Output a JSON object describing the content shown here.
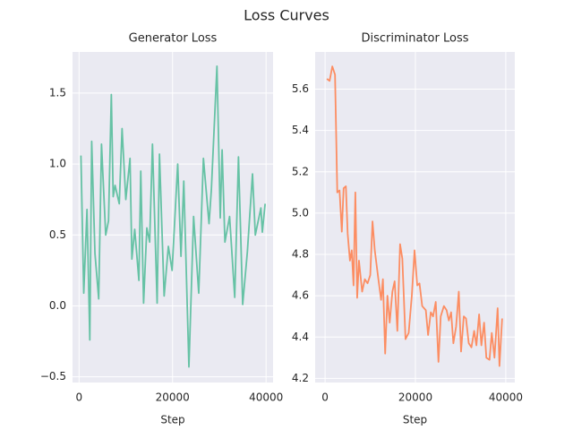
{
  "title": "Loss Curves",
  "chart_data": [
    {
      "type": "line",
      "title": "Generator Loss",
      "xlabel": "Step",
      "x": [
        400,
        1000,
        1700,
        2300,
        2700,
        3400,
        4200,
        4800,
        5700,
        6300,
        6900,
        7300,
        7700,
        8600,
        9200,
        10000,
        10900,
        11300,
        11900,
        12800,
        13200,
        13800,
        14500,
        15100,
        15700,
        16700,
        17200,
        18200,
        19100,
        19900,
        21100,
        21800,
        22400,
        23500,
        24500,
        25600,
        26600,
        27800,
        28300,
        29500,
        30200,
        30600,
        31200,
        32200,
        33300,
        34100,
        35000,
        36000,
        37100,
        37700,
        38900,
        39200,
        39800
      ],
      "series": [
        {
          "name": "Generator Loss",
          "color": "#66c2a5",
          "values": [
            1.06,
            0.09,
            0.68,
            -0.24,
            1.16,
            0.37,
            0.05,
            1.14,
            0.5,
            0.6,
            1.49,
            0.77,
            0.85,
            0.72,
            1.25,
            0.75,
            1.04,
            0.33,
            0.54,
            0.18,
            0.95,
            0.02,
            0.55,
            0.45,
            1.14,
            0.02,
            1.07,
            0.07,
            0.42,
            0.25,
            1.0,
            0.35,
            0.88,
            -0.43,
            0.63,
            0.09,
            1.04,
            0.58,
            0.82,
            1.69,
            0.62,
            1.1,
            0.45,
            0.63,
            0.06,
            1.05,
            0.01,
            0.38,
            0.93,
            0.5,
            0.69,
            0.52,
            0.72
          ]
        }
      ],
      "xlim": [
        -1400,
        41500
      ],
      "xticks": [
        0,
        20000,
        40000
      ],
      "ylim": [
        -0.54,
        1.79
      ],
      "yticks": [
        {
          "value": -0.5,
          "label": "−0.5"
        },
        {
          "value": 0,
          "label": "0.0"
        },
        0.5,
        {
          "value": 1.0,
          "label": "1.0"
        },
        1.5
      ],
      "grid": true
    },
    {
      "type": "line",
      "title": "Discriminator Loss",
      "xlabel": "Step",
      "x": [
        400,
        1000,
        1600,
        2200,
        2700,
        3200,
        3700,
        4100,
        4600,
        5000,
        5500,
        5900,
        6300,
        6700,
        7100,
        7500,
        8200,
        8800,
        9400,
        10000,
        10500,
        11000,
        11800,
        12400,
        12800,
        13300,
        13800,
        14300,
        14900,
        15400,
        16000,
        16600,
        17100,
        17800,
        18500,
        19200,
        19800,
        20400,
        20900,
        21500,
        22300,
        22800,
        23400,
        23900,
        24500,
        25100,
        25600,
        26300,
        26900,
        27400,
        27900,
        28400,
        29000,
        29600,
        30100,
        30700,
        31200,
        31800,
        32400,
        33000,
        33500,
        34100,
        34600,
        35200,
        35700,
        36400,
        36900,
        37500,
        38200,
        38600,
        39200
      ],
      "series": [
        {
          "name": "Discriminator Loss",
          "color": "#fc8d62",
          "values": [
            5.65,
            5.64,
            5.71,
            5.67,
            5.1,
            5.11,
            4.91,
            5.12,
            5.13,
            4.9,
            4.77,
            4.82,
            4.65,
            5.1,
            4.59,
            4.77,
            4.62,
            4.68,
            4.66,
            4.7,
            4.96,
            4.82,
            4.68,
            4.58,
            4.68,
            4.32,
            4.6,
            4.47,
            4.62,
            4.67,
            4.43,
            4.85,
            4.78,
            4.39,
            4.42,
            4.6,
            4.82,
            4.65,
            4.66,
            4.55,
            4.53,
            4.41,
            4.52,
            4.5,
            4.57,
            4.28,
            4.5,
            4.55,
            4.53,
            4.48,
            4.52,
            4.37,
            4.45,
            4.62,
            4.33,
            4.5,
            4.49,
            4.37,
            4.35,
            4.43,
            4.36,
            4.51,
            4.36,
            4.47,
            4.3,
            4.29,
            4.42,
            4.3,
            4.54,
            4.26,
            4.49
          ]
        }
      ],
      "xlim": [
        -2200,
        42000
      ],
      "xticks": [
        0,
        20000,
        40000
      ],
      "ylim": [
        4.18,
        5.78
      ],
      "yticks": [
        4.2,
        4.4,
        4.6,
        4.8,
        {
          "value": 5.0,
          "label": "5.0"
        },
        5.2,
        5.4,
        5.6
      ],
      "grid": true
    }
  ]
}
